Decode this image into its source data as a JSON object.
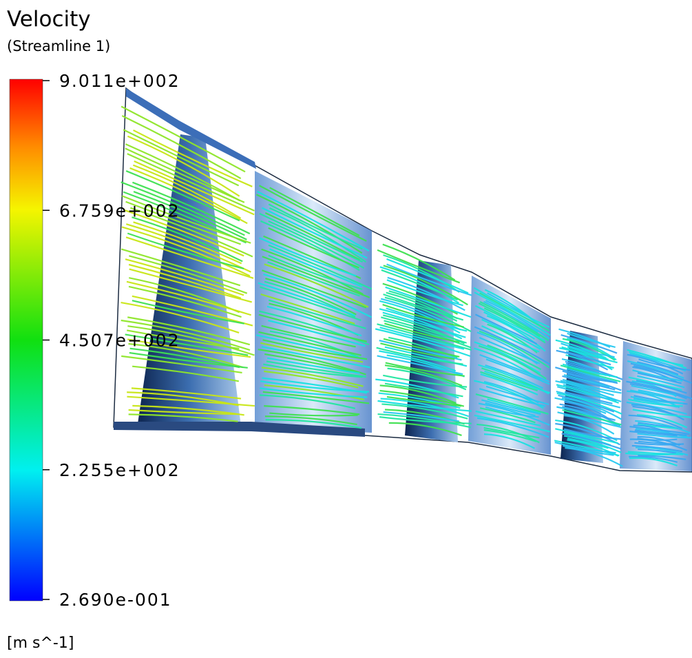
{
  "header": {
    "title": "Velocity",
    "subtitle": "(Streamline 1)"
  },
  "legend": {
    "ticks": [
      "9.011e+002",
      "6.759e+002",
      "4.507e+002",
      "2.255e+002",
      "2.690e-001"
    ],
    "unit": "[m s^-1]"
  }
}
